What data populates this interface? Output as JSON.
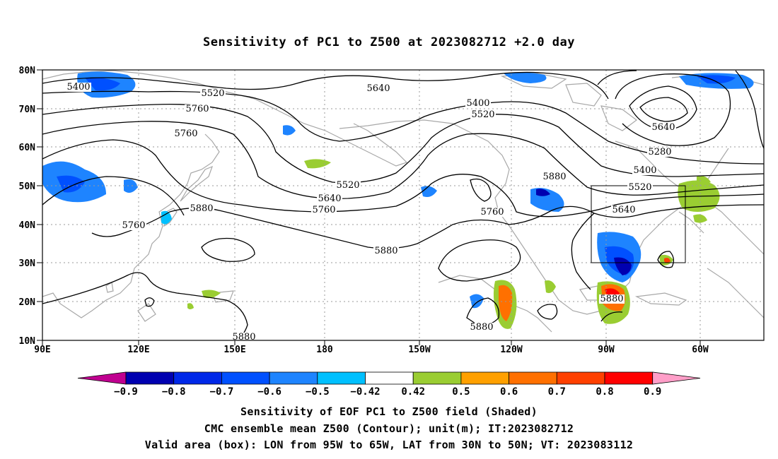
{
  "title": "Sensitivity of PC1 to Z500 at 2023082712 +2.0 day",
  "map": {
    "lat_labels": [
      "80N",
      "70N",
      "60N",
      "50N",
      "40N",
      "30N",
      "20N",
      "10N"
    ],
    "lon_labels": [
      "90E",
      "120E",
      "150E",
      "180",
      "150W",
      "120W",
      "90W",
      "60W"
    ],
    "contour_labels": [
      {
        "text": "5400"
      },
      {
        "text": "5520"
      },
      {
        "text": "5640"
      },
      {
        "text": "5760"
      },
      {
        "text": "5400"
      },
      {
        "text": "5520"
      },
      {
        "text": "5640"
      },
      {
        "text": "5280"
      },
      {
        "text": "5400"
      },
      {
        "text": "5520"
      },
      {
        "text": "5640"
      },
      {
        "text": "5760"
      },
      {
        "text": "5880"
      },
      {
        "text": "5760"
      },
      {
        "text": "5880"
      },
      {
        "text": "5760"
      },
      {
        "text": "5880"
      },
      {
        "text": "5520"
      },
      {
        "text": "5640"
      },
      {
        "text": "5760"
      },
      {
        "text": "5880"
      },
      {
        "text": "5880"
      },
      {
        "text": "5880"
      }
    ],
    "valid_box": {
      "lon": [
        "95W",
        "65W"
      ],
      "lat": [
        "30N",
        "50N"
      ]
    }
  },
  "colorbar": {
    "levels": [
      "-0.9",
      "-0.8",
      "-0.7",
      "-0.6",
      "-0.5",
      "-0.42",
      "0.42",
      "0.5",
      "0.6",
      "0.7",
      "0.8",
      "0.9"
    ],
    "colors": [
      "#c00090",
      "#0000b0",
      "#0028e8",
      "#0050ff",
      "#1e84ff",
      "#00c0ff",
      "#ffffff",
      "#9acd32",
      "#ffa000",
      "#ff7000",
      "#ff4000",
      "#ff0000",
      "#ff9ec8"
    ]
  },
  "captions": [
    "Sensitivity of EOF PC1 to Z500 field (Shaded)",
    "CMC ensemble mean Z500 (Contour); unit(m); IT:2023082712",
    "Valid area (box): LON from 95W to 65W, LAT from 30N to 50N; VT: 2023083112"
  ]
}
